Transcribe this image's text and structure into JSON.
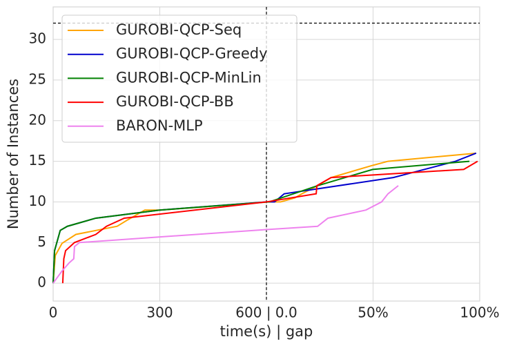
{
  "chart_data": {
    "type": "line",
    "xlabel": "time(s) | gap",
    "ylabel": "Number of Instances",
    "xlim": [
      0,
      1200
    ],
    "ylim": [
      -2.2,
      34
    ],
    "xticks": [
      0,
      300,
      {
        "value": 600,
        "label": "600 | 0.0"
      },
      {
        "value": 900,
        "label": "50%"
      },
      {
        "value": 1200,
        "label": "100%"
      }
    ],
    "yticks": [
      0,
      5,
      10,
      15,
      20,
      25,
      30
    ],
    "grid": true,
    "legend": "upper left",
    "hline": 32,
    "vline": 600,
    "series": [
      {
        "name": "GUROBI-QCP-Seq",
        "color": "#ffa500",
        "x": [
          0,
          6,
          25,
          64,
          180,
          210,
          258,
          300,
          400,
          600,
          640,
          680,
          700,
          744,
          782,
          899,
          942,
          1190
        ],
        "values": [
          0,
          3.4,
          4.9,
          6,
          7,
          7.8,
          9,
          9,
          9.3,
          10,
          10,
          10.5,
          11,
          12,
          13,
          14.5,
          15,
          16
        ]
      },
      {
        "name": "GUROBI-QCP-Greedy",
        "color": "#0000cd",
        "x": [
          0,
          4,
          20,
          40,
          120,
          300,
          600,
          623,
          650,
          957,
          1132,
          1190
        ],
        "values": [
          0,
          4,
          6.5,
          7,
          8,
          9,
          10,
          10,
          11,
          13,
          15,
          16
        ]
      },
      {
        "name": "GUROBI-QCP-MinLin",
        "color": "#008000",
        "x": [
          0,
          4,
          20,
          40,
          120,
          300,
          608,
          744,
          899,
          1171
        ],
        "values": [
          0,
          4,
          6.5,
          7,
          8,
          9,
          10,
          12,
          14,
          15
        ]
      },
      {
        "name": "GUROBI-QCP-BB",
        "color": "#ff0000",
        "x": [
          27,
          30,
          35,
          60,
          120,
          150,
          200,
          600,
          740,
          742,
          782,
          1155,
          1194
        ],
        "values": [
          0,
          3,
          4,
          5,
          6,
          7,
          8,
          10,
          11,
          12,
          13,
          14,
          15
        ]
      },
      {
        "name": "BARON-MLP",
        "color": "#ee82ee",
        "x": [
          0,
          25,
          45,
          58,
          60,
          74,
          600,
          744,
          773,
          880,
          924,
          942,
          971
        ],
        "values": [
          0,
          1.5,
          2.5,
          3,
          4.5,
          5,
          6.6,
          7,
          8,
          9,
          10,
          11,
          12
        ]
      }
    ]
  }
}
